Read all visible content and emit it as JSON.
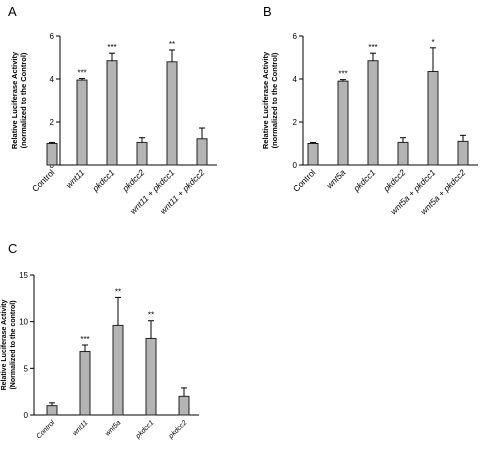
{
  "chart_data": [
    {
      "panel_label": "A",
      "type": "bar",
      "ylabel_line1": "Relative Luciferase Activity",
      "ylabel_line2": "(normalized to the Control)",
      "ylim": [
        0,
        6
      ],
      "yticks": [
        0,
        2,
        4,
        6
      ],
      "categories": [
        "Control",
        "wnt11",
        "pkdcc1",
        "pkdcc2",
        "wnt11 + pkdcc1",
        "wnt11 + pkdcc2"
      ],
      "italic": [
        false,
        true,
        true,
        true,
        true,
        true
      ],
      "values": [
        1.0,
        3.95,
        4.85,
        1.05,
        4.8,
        1.22
      ],
      "errors": [
        0.05,
        0.07,
        0.35,
        0.22,
        0.55,
        0.5
      ],
      "significance": [
        "",
        "***",
        "***",
        "",
        "**",
        ""
      ]
    },
    {
      "panel_label": "B",
      "type": "bar",
      "ylabel_line1": "Relative Luciferase Activity",
      "ylabel_line2": "(normalized to the Control)",
      "ylim": [
        0,
        6
      ],
      "yticks": [
        0,
        2,
        4,
        6
      ],
      "categories": [
        "Control",
        "wnt5a",
        "pkdcc1",
        "pkdcc2",
        "wnt5a + pkdcc1",
        "wnt5a + pkdcc2"
      ],
      "italic": [
        false,
        true,
        true,
        true,
        true,
        true
      ],
      "values": [
        1.0,
        3.9,
        4.85,
        1.05,
        4.35,
        1.1
      ],
      "errors": [
        0.05,
        0.07,
        0.35,
        0.22,
        1.1,
        0.28
      ],
      "significance": [
        "",
        "***",
        "***",
        "",
        "*",
        ""
      ]
    },
    {
      "panel_label": "C",
      "type": "bar",
      "ylabel_line1": "Relative Luciferase Activity",
      "ylabel_line2": "(Normalized to the control)",
      "ylim": [
        0,
        15
      ],
      "yticks": [
        0,
        5,
        10,
        15
      ],
      "categories": [
        "Control",
        "wnt11",
        "wnt5a",
        "pkdcc1",
        "pkdcc2"
      ],
      "italic": [
        true,
        true,
        true,
        true,
        true
      ],
      "values": [
        1.0,
        6.8,
        9.6,
        8.2,
        2.0
      ],
      "errors": [
        0.3,
        0.7,
        3.0,
        1.9,
        0.9
      ],
      "significance": [
        "",
        "***",
        "**",
        "**",
        ""
      ]
    }
  ]
}
